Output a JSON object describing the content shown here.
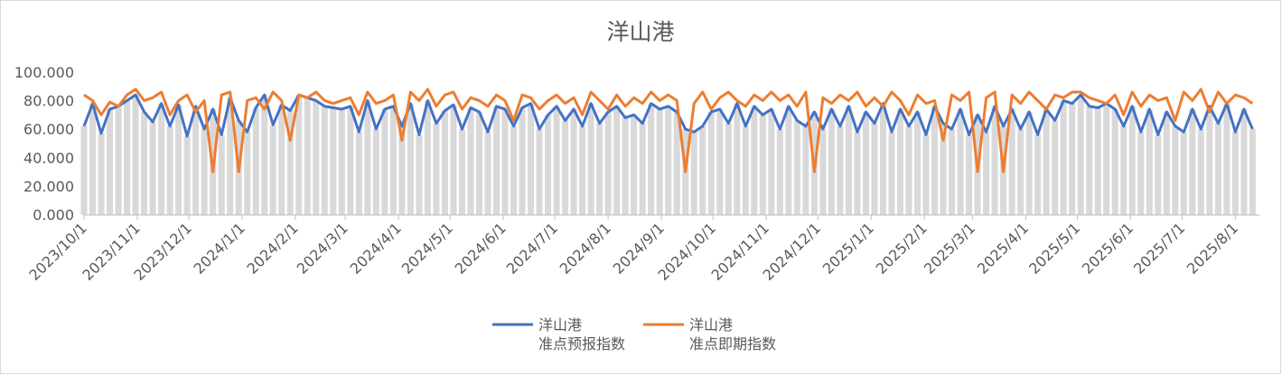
{
  "chart_data": {
    "type": "line",
    "title": "洋山港",
    "xlabel": "",
    "ylabel": "",
    "ylim": [
      0,
      100
    ],
    "xlim": [
      "2023-10-01",
      "2025-08-15"
    ],
    "grid": false,
    "legend": "bottom",
    "y_ticks": [
      "0.000",
      "20.000",
      "40.000",
      "60.000",
      "80.000",
      "100.000"
    ],
    "x_ticks": [
      "2023/10/1",
      "2023/11/1",
      "2023/12/1",
      "2024/1/1",
      "2024/2/1",
      "2024/3/1",
      "2024/4/1",
      "2024/5/1",
      "2024/6/1",
      "2024/7/1",
      "2024/8/1",
      "2024/9/1",
      "2024/10/1",
      "2024/11/1",
      "2024/12/1",
      "2025/1/1",
      "2025/2/1",
      "2025/3/1",
      "2025/4/1",
      "2025/5/1",
      "2025/6/1",
      "2025/7/1",
      "2025/8/1"
    ],
    "x": [
      "2023-10-01",
      "2023-10-06",
      "2023-10-11",
      "2023-10-16",
      "2023-10-21",
      "2023-10-26",
      "2023-10-31",
      "2023-11-05",
      "2023-11-10",
      "2023-11-15",
      "2023-11-20",
      "2023-11-25",
      "2023-11-30",
      "2023-12-05",
      "2023-12-10",
      "2023-12-15",
      "2023-12-20",
      "2023-12-25",
      "2023-12-30",
      "2024-01-04",
      "2024-01-09",
      "2024-01-14",
      "2024-01-19",
      "2024-01-24",
      "2024-01-29",
      "2024-02-03",
      "2024-02-08",
      "2024-02-13",
      "2024-02-18",
      "2024-02-23",
      "2024-02-28",
      "2024-03-04",
      "2024-03-09",
      "2024-03-14",
      "2024-03-19",
      "2024-03-24",
      "2024-03-29",
      "2024-04-03",
      "2024-04-08",
      "2024-04-13",
      "2024-04-18",
      "2024-04-23",
      "2024-04-28",
      "2024-05-03",
      "2024-05-08",
      "2024-05-13",
      "2024-05-18",
      "2024-05-23",
      "2024-05-28",
      "2024-06-02",
      "2024-06-07",
      "2024-06-12",
      "2024-06-17",
      "2024-06-22",
      "2024-06-27",
      "2024-07-02",
      "2024-07-07",
      "2024-07-12",
      "2024-07-17",
      "2024-07-22",
      "2024-07-27",
      "2024-08-01",
      "2024-08-06",
      "2024-08-11",
      "2024-08-16",
      "2024-08-21",
      "2024-08-26",
      "2024-08-31",
      "2024-09-05",
      "2024-09-10",
      "2024-09-15",
      "2024-09-20",
      "2024-09-25",
      "2024-09-30",
      "2024-10-05",
      "2024-10-10",
      "2024-10-15",
      "2024-10-20",
      "2024-10-25",
      "2024-10-30",
      "2024-11-04",
      "2024-11-09",
      "2024-11-14",
      "2024-11-19",
      "2024-11-24",
      "2024-11-29",
      "2024-12-04",
      "2024-12-09",
      "2024-12-14",
      "2024-12-19",
      "2024-12-24",
      "2024-12-29",
      "2025-01-03",
      "2025-01-08",
      "2025-01-13",
      "2025-01-18",
      "2025-01-23",
      "2025-01-28",
      "2025-02-02",
      "2025-02-07",
      "2025-02-12",
      "2025-02-17",
      "2025-02-22",
      "2025-02-27",
      "2025-03-04",
      "2025-03-09",
      "2025-03-14",
      "2025-03-19",
      "2025-03-24",
      "2025-03-29",
      "2025-04-03",
      "2025-04-08",
      "2025-04-13",
      "2025-04-18",
      "2025-04-23",
      "2025-04-28",
      "2025-05-03",
      "2025-05-08",
      "2025-05-13",
      "2025-05-18",
      "2025-05-23",
      "2025-05-28",
      "2025-06-02",
      "2025-06-07",
      "2025-06-12",
      "2025-06-17",
      "2025-06-22",
      "2025-06-27",
      "2025-07-02",
      "2025-07-07",
      "2025-07-12",
      "2025-07-17",
      "2025-07-22",
      "2025-07-27",
      "2025-08-01",
      "2025-08-06",
      "2025-08-11"
    ],
    "series": [
      {
        "name": "洋山港\n准点预报指数",
        "name_lines": [
          "洋山港",
          "准点预报指数"
        ],
        "color": "#4472C4",
        "values": [
          62,
          78,
          57,
          74,
          76,
          80,
          84,
          72,
          65,
          78,
          62,
          77,
          55,
          76,
          60,
          74,
          56,
          82,
          66,
          58,
          75,
          84,
          63,
          77,
          73,
          84,
          82,
          80,
          76,
          75,
          74,
          76,
          58,
          80,
          60,
          74,
          76,
          62,
          78,
          56,
          80,
          64,
          73,
          77,
          60,
          75,
          72,
          58,
          76,
          74,
          62,
          75,
          78,
          60,
          70,
          76,
          66,
          74,
          62,
          78,
          64,
          72,
          76,
          68,
          70,
          64,
          78,
          74,
          76,
          72,
          60,
          58,
          62,
          72,
          74,
          64,
          78,
          62,
          76,
          70,
          74,
          60,
          76,
          66,
          62,
          72,
          60,
          74,
          62,
          76,
          58,
          72,
          64,
          78,
          58,
          74,
          62,
          72,
          56,
          76,
          64,
          60,
          74,
          56,
          70,
          58,
          76,
          62,
          74,
          60,
          72,
          56,
          74,
          66,
          80,
          78,
          84,
          76,
          75,
          78,
          74,
          62,
          76,
          58,
          74,
          56,
          72,
          62,
          58,
          74,
          60,
          76,
          64,
          78,
          58,
          74,
          60
        ]
      },
      {
        "name": "洋山港\n准点即期指数",
        "name_lines": [
          "洋山港",
          "准点即期指数"
        ],
        "color": "#ED7D31",
        "values": [
          84,
          80,
          70,
          79,
          76,
          84,
          88,
          80,
          82,
          86,
          70,
          80,
          84,
          72,
          80,
          30,
          84,
          86,
          30,
          80,
          82,
          74,
          86,
          80,
          52,
          84,
          82,
          86,
          80,
          78,
          80,
          82,
          70,
          86,
          78,
          80,
          84,
          52,
          86,
          80,
          88,
          76,
          84,
          86,
          74,
          82,
          80,
          76,
          84,
          80,
          66,
          84,
          82,
          74,
          80,
          84,
          78,
          82,
          70,
          86,
          80,
          74,
          84,
          76,
          82,
          78,
          86,
          80,
          84,
          80,
          30,
          78,
          86,
          74,
          82,
          86,
          80,
          76,
          84,
          80,
          86,
          80,
          84,
          76,
          86,
          30,
          82,
          78,
          84,
          80,
          86,
          76,
          82,
          76,
          86,
          80,
          70,
          84,
          78,
          80,
          52,
          84,
          80,
          86,
          30,
          82,
          86,
          30,
          84,
          78,
          86,
          80,
          74,
          84,
          82,
          86,
          86,
          82,
          80,
          78,
          84,
          70,
          86,
          76,
          84,
          80,
          82,
          66,
          86,
          80,
          88,
          72,
          86,
          78,
          84,
          82,
          78
        ]
      }
    ],
    "background_bar_color": "#D9D9D9"
  }
}
